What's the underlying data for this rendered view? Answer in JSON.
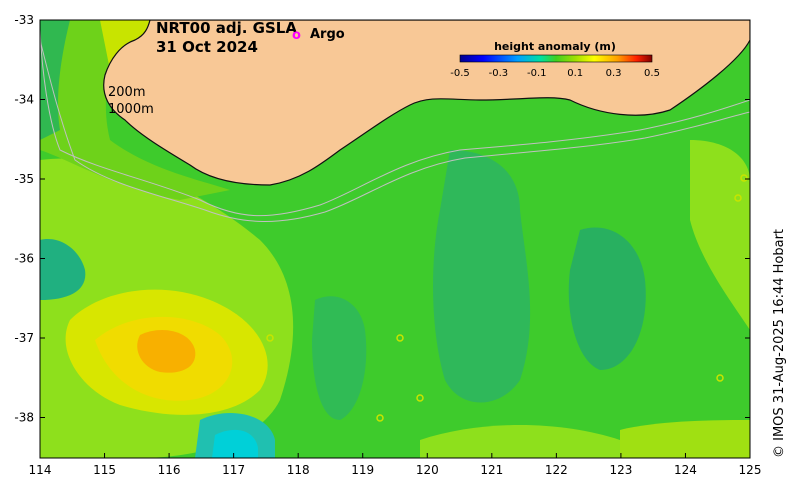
{
  "map": {
    "title_line1": "NRT00 adj. GSLA",
    "title_line2": "31 Oct 2024",
    "argo_legend_label": "Argo",
    "argo_symbol": "o",
    "isobath_200_label": "200m",
    "isobath_1000_label": "1000m",
    "credit": "© IMOS 31-Aug-2025 16:44 Hobart",
    "lon_ticks": [
      "114",
      "115",
      "116",
      "117",
      "118",
      "119",
      "120",
      "121",
      "122",
      "123",
      "124",
      "125"
    ],
    "lat_ticks": [
      "-33",
      "-34",
      "-35",
      "-36",
      "-37",
      "-38"
    ],
    "colorbar": {
      "title": "height anomaly (m)",
      "ticks": [
        "-0.5",
        "-0.3",
        "-0.1",
        "0.1",
        "0.3",
        "0.5"
      ],
      "range": [
        -0.5,
        0.5
      ]
    },
    "colors": {
      "land": "#f8c896",
      "ocean_base": "#3ecb2c",
      "argo": "#ff00ff"
    }
  }
}
